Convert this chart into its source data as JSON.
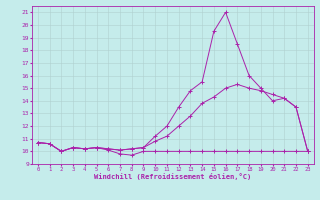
{
  "xlabel": "Windchill (Refroidissement éolien,°C)",
  "background_color": "#c5eceb",
  "grid_color": "#b0d0d0",
  "line_color": "#aa22aa",
  "ylim": [
    9,
    21.5
  ],
  "xlim": [
    -0.5,
    23.5
  ],
  "yticks": [
    9,
    10,
    11,
    12,
    13,
    14,
    15,
    16,
    17,
    18,
    19,
    20,
    21
  ],
  "xticks": [
    0,
    1,
    2,
    3,
    4,
    5,
    6,
    7,
    8,
    9,
    10,
    11,
    12,
    13,
    14,
    15,
    16,
    17,
    18,
    19,
    20,
    21,
    22,
    23
  ],
  "line1_x": [
    0,
    1,
    2,
    3,
    4,
    5,
    6,
    7,
    8,
    9,
    10,
    11,
    12,
    13,
    14,
    15,
    16,
    17,
    18,
    19,
    20,
    21,
    22,
    23
  ],
  "line1_y": [
    10.7,
    10.6,
    10.0,
    10.3,
    10.2,
    10.3,
    10.1,
    9.8,
    9.7,
    10.0,
    10.0,
    10.0,
    10.0,
    10.0,
    10.0,
    10.0,
    10.0,
    10.0,
    10.0,
    10.0,
    10.0,
    10.0,
    10.0,
    10.0
  ],
  "line2_x": [
    0,
    1,
    2,
    3,
    4,
    5,
    6,
    7,
    8,
    9,
    10,
    11,
    12,
    13,
    14,
    15,
    16,
    17,
    18,
    19,
    20,
    21,
    22,
    23
  ],
  "line2_y": [
    10.7,
    10.6,
    10.0,
    10.3,
    10.2,
    10.3,
    10.2,
    10.1,
    10.2,
    10.3,
    10.8,
    11.2,
    12.0,
    12.8,
    13.8,
    14.3,
    15.0,
    15.3,
    15.0,
    14.8,
    14.5,
    14.2,
    13.5,
    10.0
  ],
  "line3_x": [
    0,
    1,
    2,
    3,
    4,
    5,
    6,
    7,
    8,
    9,
    10,
    11,
    12,
    13,
    14,
    15,
    16,
    17,
    18,
    19,
    20,
    21,
    22,
    23
  ],
  "line3_y": [
    10.7,
    10.6,
    10.0,
    10.3,
    10.2,
    10.3,
    10.2,
    10.1,
    10.2,
    10.3,
    11.2,
    12.0,
    13.5,
    14.8,
    15.5,
    19.5,
    21.0,
    18.5,
    16.0,
    15.0,
    14.0,
    14.2,
    13.5,
    10.0
  ]
}
